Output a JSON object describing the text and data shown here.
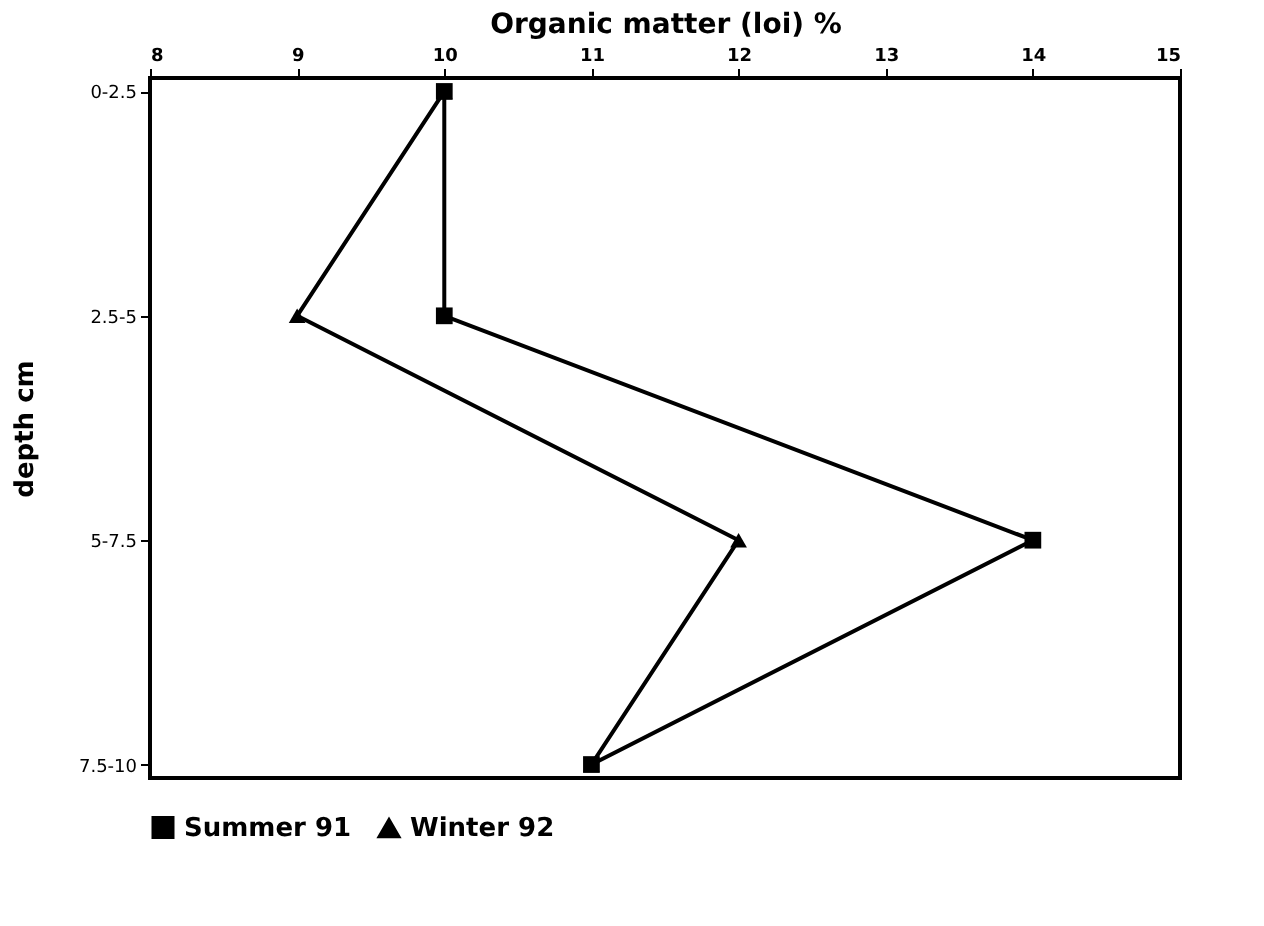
{
  "chart_data": {
    "type": "line",
    "orientation": "horizontal",
    "xlabel": "Organic matter (loi) %",
    "ylabel": "depth cm",
    "categories": [
      "0-2.5",
      "2.5-5",
      "5-7.5",
      "7.5-10"
    ],
    "series": [
      {
        "name": "Summer 91",
        "color": "#000000",
        "marker": "square",
        "values": [
          10,
          10,
          14,
          11
        ]
      },
      {
        "name": "Winter 92",
        "color": "#000000",
        "marker": "triangle",
        "values": [
          10,
          9,
          12,
          11
        ]
      }
    ],
    "xlim": [
      8,
      15
    ],
    "xticks": [
      8,
      9,
      10,
      11,
      12,
      13,
      14,
      15
    ],
    "grid": false,
    "legend": "bottom",
    "line_style": "solid"
  }
}
